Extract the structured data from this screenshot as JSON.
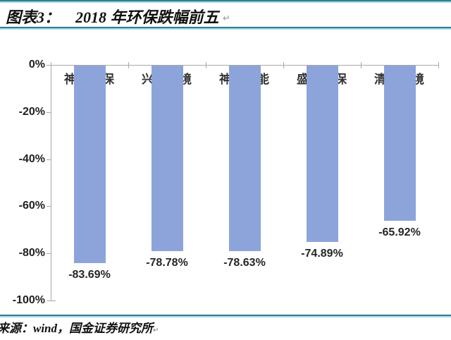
{
  "header": {
    "chart_label": "图表3：",
    "chart_title": "2018 年环保跌幅前五",
    "return_mark": "↵"
  },
  "footer": {
    "source": "来源：wind，国金证券研究所",
    "return_mark": "↵"
  },
  "colors": {
    "bar_fill": "#8DA4DB",
    "axis": "#A8A8A8",
    "rule_dark": "#2F7E8E",
    "rule_light": "#A6DCE3",
    "label_text": "#262626"
  },
  "chart_data": {
    "type": "bar",
    "title": "2018 年环保跌幅前五",
    "categories": [
      "神雾环保",
      "兴源环境",
      "神雾节能",
      "盛运环保",
      "清新环境"
    ],
    "values": [
      -83.69,
      -78.78,
      -78.63,
      -74.89,
      -65.92
    ],
    "data_labels": [
      "-83.69%",
      "-78.78%",
      "-78.63%",
      "-74.89%",
      "-65.92%"
    ],
    "xlabel": "",
    "ylabel": "",
    "ylim": [
      -100,
      0
    ],
    "ytick_labels": [
      "0%",
      "-20%",
      "-40%",
      "-60%",
      "-80%",
      "-100%"
    ],
    "ytick_values": [
      0,
      -20,
      -40,
      -60,
      -80,
      -100
    ],
    "grid": false,
    "legend": null,
    "category_axis_position": "top",
    "source": "来源：wind，国金证券研究所"
  }
}
